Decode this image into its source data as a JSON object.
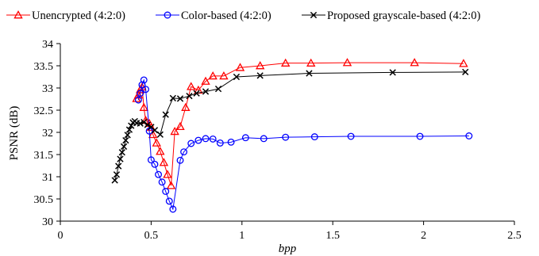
{
  "chart_data": {
    "type": "line",
    "xlabel": "bpp",
    "ylabel": "PSNR (dB)",
    "xlim": [
      0,
      2.5
    ],
    "ylim": [
      30,
      34
    ],
    "x_ticks": [
      "0",
      "0.5",
      "1",
      "1.5",
      "2",
      "2.5"
    ],
    "y_ticks": [
      "30",
      "30.5",
      "31",
      "31.5",
      "32",
      "32.5",
      "33",
      "33.5",
      "34"
    ],
    "grid": false,
    "legend_position": "top",
    "series": [
      {
        "name": "Unencrypted (4:2:0)",
        "color": "#ff0000",
        "marker": "triangle",
        "points": [
          [
            0.42,
            32.76
          ],
          [
            0.43,
            32.84
          ],
          [
            0.44,
            32.96
          ],
          [
            0.45,
            33.02
          ],
          [
            0.46,
            32.56
          ],
          [
            0.47,
            32.27
          ],
          [
            0.49,
            32.2
          ],
          [
            0.5,
            32.11
          ],
          [
            0.51,
            31.95
          ],
          [
            0.53,
            31.76
          ],
          [
            0.55,
            31.57
          ],
          [
            0.57,
            31.32
          ],
          [
            0.59,
            31.05
          ],
          [
            0.61,
            30.8
          ],
          [
            0.63,
            32.02
          ],
          [
            0.66,
            32.13
          ],
          [
            0.69,
            32.56
          ],
          [
            0.72,
            33.03
          ],
          [
            0.76,
            32.95
          ],
          [
            0.8,
            33.15
          ],
          [
            0.84,
            33.27
          ],
          [
            0.9,
            33.27
          ],
          [
            0.99,
            33.46
          ],
          [
            1.1,
            33.5
          ],
          [
            1.24,
            33.56
          ],
          [
            1.38,
            33.56
          ],
          [
            1.58,
            33.57
          ],
          [
            1.95,
            33.57
          ],
          [
            2.22,
            33.55
          ]
        ]
      },
      {
        "name": "Color-based (4:2:0)",
        "color": "#0000ff",
        "marker": "circle",
        "points": [
          [
            0.43,
            32.73
          ],
          [
            0.44,
            32.88
          ],
          [
            0.45,
            33.07
          ],
          [
            0.46,
            33.18
          ],
          [
            0.47,
            32.97
          ],
          [
            0.49,
            32.03
          ],
          [
            0.5,
            31.38
          ],
          [
            0.52,
            31.28
          ],
          [
            0.54,
            31.05
          ],
          [
            0.56,
            30.88
          ],
          [
            0.58,
            30.67
          ],
          [
            0.6,
            30.45
          ],
          [
            0.62,
            30.27
          ],
          [
            0.66,
            31.37
          ],
          [
            0.68,
            31.56
          ],
          [
            0.72,
            31.75
          ],
          [
            0.76,
            31.82
          ],
          [
            0.8,
            31.86
          ],
          [
            0.84,
            31.85
          ],
          [
            0.88,
            31.76
          ],
          [
            0.94,
            31.78
          ],
          [
            1.02,
            31.88
          ],
          [
            1.12,
            31.86
          ],
          [
            1.24,
            31.89
          ],
          [
            1.4,
            31.9
          ],
          [
            1.6,
            31.91
          ],
          [
            1.98,
            31.91
          ],
          [
            2.25,
            31.92
          ]
        ]
      },
      {
        "name": "Proposed grayscale-based (4:2:0)",
        "color": "#000000",
        "marker": "x",
        "points": [
          [
            0.3,
            30.92
          ],
          [
            0.31,
            31.05
          ],
          [
            0.32,
            31.24
          ],
          [
            0.33,
            31.4
          ],
          [
            0.34,
            31.55
          ],
          [
            0.35,
            31.68
          ],
          [
            0.36,
            31.82
          ],
          [
            0.37,
            31.94
          ],
          [
            0.38,
            32.06
          ],
          [
            0.39,
            32.15
          ],
          [
            0.4,
            32.22
          ],
          [
            0.41,
            32.25
          ],
          [
            0.42,
            32.21
          ],
          [
            0.44,
            32.2
          ],
          [
            0.46,
            32.23
          ],
          [
            0.48,
            32.17
          ],
          [
            0.5,
            32.12
          ],
          [
            0.52,
            32.05
          ],
          [
            0.55,
            31.95
          ],
          [
            0.58,
            32.4
          ],
          [
            0.62,
            32.77
          ],
          [
            0.66,
            32.76
          ],
          [
            0.71,
            32.82
          ],
          [
            0.75,
            32.88
          ],
          [
            0.8,
            32.92
          ],
          [
            0.87,
            32.98
          ],
          [
            0.97,
            33.25
          ],
          [
            1.1,
            33.28
          ],
          [
            1.37,
            33.33
          ],
          [
            1.83,
            33.35
          ],
          [
            2.23,
            33.36
          ]
        ]
      }
    ]
  }
}
